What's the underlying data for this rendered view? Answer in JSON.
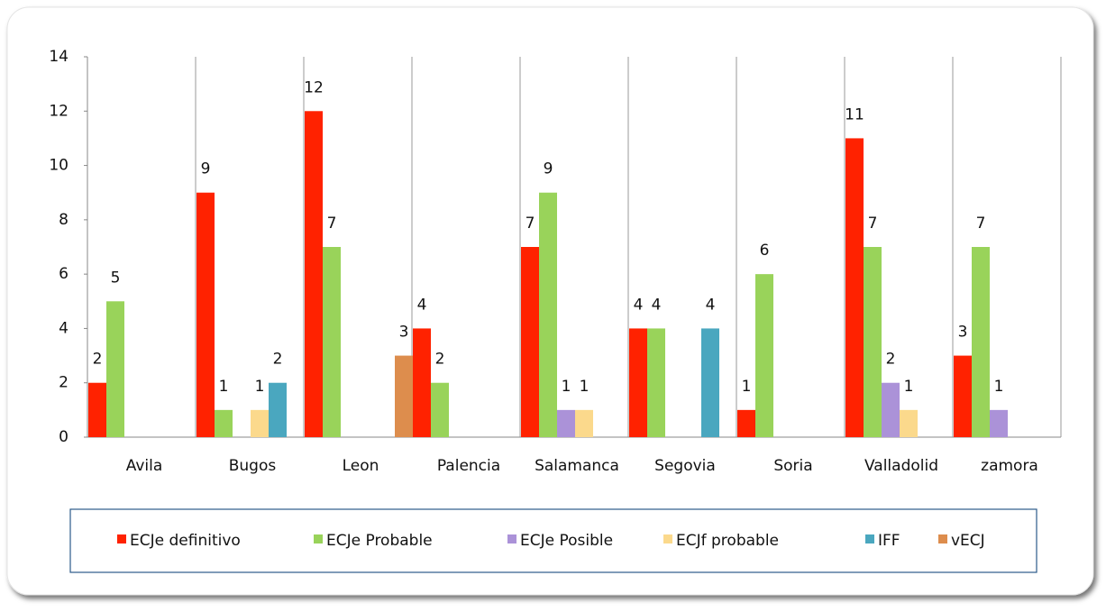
{
  "chart_data": {
    "type": "bar",
    "categories": [
      "Avila",
      "Bugos",
      "Leon",
      "Palencia",
      "Salamanca",
      "Segovia",
      "Soria",
      "Valladolid",
      "zamora"
    ],
    "series": [
      {
        "name": "ECJe definitivo",
        "color": "#ff2200",
        "values": [
          2,
          9,
          12,
          4,
          7,
          4,
          1,
          11,
          3
        ]
      },
      {
        "name": "ECJe Probable",
        "color": "#99d35a",
        "values": [
          5,
          1,
          7,
          2,
          9,
          4,
          6,
          7,
          7
        ]
      },
      {
        "name": "ECJe Posible",
        "color": "#ab92d8",
        "values": [
          null,
          null,
          null,
          null,
          1,
          null,
          null,
          2,
          1
        ]
      },
      {
        "name": "ECJf probable",
        "color": "#fbd98c",
        "values": [
          null,
          1,
          null,
          null,
          1,
          null,
          null,
          1,
          null
        ]
      },
      {
        "name": "IFF",
        "color": "#4aa7bf",
        "values": [
          null,
          2,
          null,
          null,
          null,
          4,
          null,
          null,
          null
        ]
      },
      {
        "name": "vECJ",
        "color": "#dd8d4d",
        "values": [
          null,
          null,
          3,
          null,
          null,
          null,
          null,
          null,
          null
        ]
      }
    ],
    "ylim": [
      0,
      14
    ],
    "yticks": [
      0,
      2,
      4,
      6,
      8,
      10,
      12,
      14
    ],
    "legend": "bottom"
  }
}
